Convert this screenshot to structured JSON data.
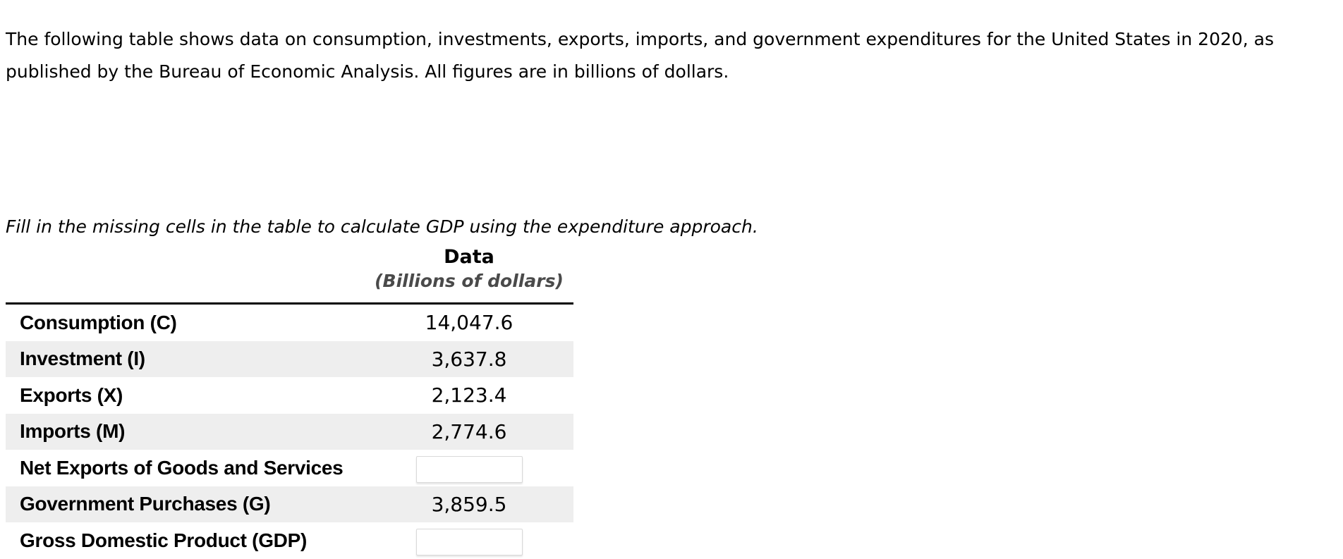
{
  "page": {
    "intro_paragraph": "The following table shows data on consumption, investments, exports, imports, and government expenditures for the United States in 2020, as published by the Bureau of Economic Analysis. All figures are in billions of dollars.",
    "instruction": "Fill in the missing cells in the table to calculate GDP using the expenditure approach."
  },
  "table": {
    "header": {
      "title": "Data",
      "subtitle": "(Billions of dollars)"
    },
    "rows": [
      {
        "label": "Consumption (C)",
        "value": "14,047.6"
      },
      {
        "label": "Investment (I)",
        "value": "3,637.8"
      },
      {
        "label": "Exports (X)",
        "value": "2,123.4"
      },
      {
        "label": "Imports (M)",
        "value": "2,774.6"
      },
      {
        "label": "Net Exports of Goods and Services",
        "value": ""
      },
      {
        "label": "Government Purchases (G)",
        "value": "3,859.5"
      },
      {
        "label": "Gross Domestic Product (GDP)",
        "value": ""
      }
    ]
  },
  "colors": {
    "row_stripe": "#eeeeee",
    "header_subtitle": "#4a4a4a",
    "header_rule": "#000000",
    "input_border": "#d9d9d9"
  }
}
